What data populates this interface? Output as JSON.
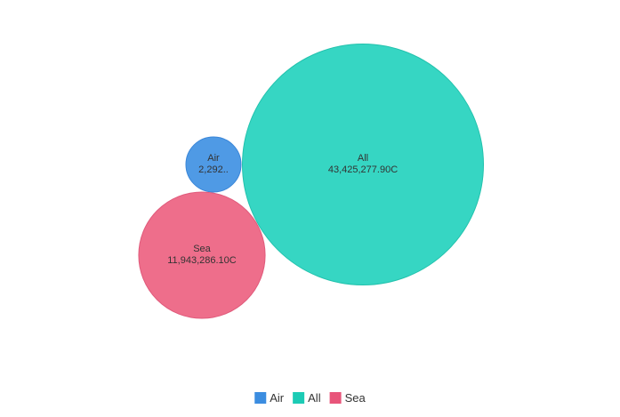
{
  "chart_data": {
    "type": "bubble",
    "title": "",
    "xlabel": "",
    "ylabel": "",
    "series": [
      {
        "name": "Air",
        "value": 2292,
        "label_line1": "Air",
        "label_line2": "2,292..",
        "color": "#4f9ae5"
      },
      {
        "name": "All",
        "value": 43425277.9,
        "label_line1": "All",
        "label_line2": "43,425,277.90C",
        "color": "#36d6c3"
      },
      {
        "name": "Sea",
        "value": 11943286.1,
        "label_line1": "Sea",
        "label_line2": "11,943,286.10C",
        "color": "#ee6e8b"
      }
    ],
    "legend": {
      "position": "bottom",
      "items": [
        {
          "label": "Air",
          "color": "#3b8de0"
        },
        {
          "label": "All",
          "color": "#1ccbb5"
        },
        {
          "label": "Sea",
          "color": "#e8557a"
        }
      ]
    },
    "grid": false
  }
}
